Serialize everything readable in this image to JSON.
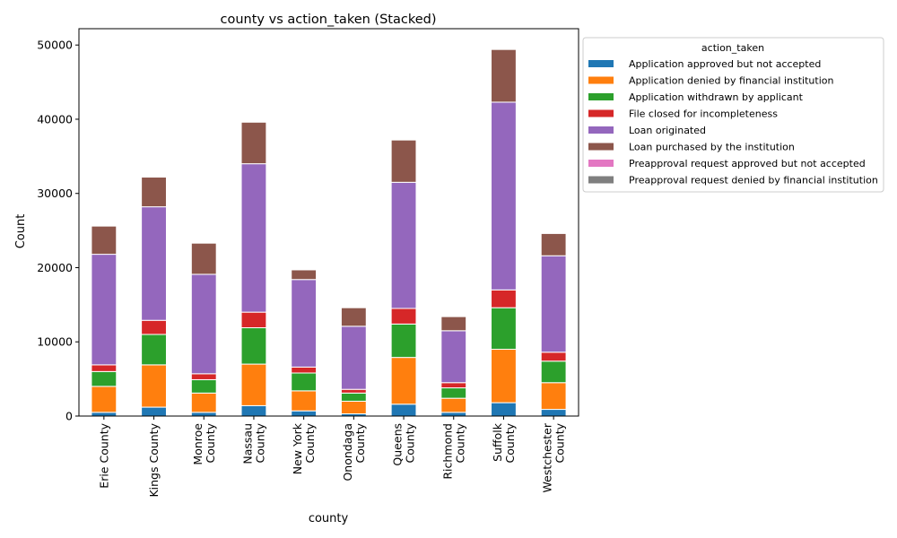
{
  "chart_data": {
    "type": "bar",
    "stacked": true,
    "title": "county vs action_taken (Stacked)",
    "xlabel": "county",
    "ylabel": "Count",
    "ylim": [
      0,
      52200
    ],
    "yticks": [
      0,
      10000,
      20000,
      30000,
      40000,
      50000
    ],
    "grid": false,
    "legend_title": "action_taken",
    "legend_position": "outside-top-right",
    "categories": [
      "Erie County",
      "Kings County",
      "Monroe County",
      "Nassau County",
      "New York County",
      "Onondaga County",
      "Queens County",
      "Richmond County",
      "Suffolk County",
      "Westchester County"
    ],
    "category_labels": [
      [
        "Erie County"
      ],
      [
        "Kings County"
      ],
      [
        "Monroe",
        "County"
      ],
      [
        "Nassau",
        "County"
      ],
      [
        "New York",
        "County"
      ],
      [
        "Onondaga",
        "County"
      ],
      [
        "Queens",
        "County"
      ],
      [
        "Richmond",
        "County"
      ],
      [
        "Suffolk",
        "County"
      ],
      [
        "Westchester",
        "County"
      ]
    ],
    "series": [
      {
        "name": "Application approved but not accepted",
        "color": "#1f77b4",
        "values": [
          500,
          1200,
          500,
          1400,
          700,
          300,
          1600,
          500,
          1800,
          900
        ]
      },
      {
        "name": "Application denied by financial institution",
        "color": "#ff7f0e",
        "values": [
          3500,
          5700,
          2600,
          5600,
          2700,
          1700,
          6300,
          1900,
          7200,
          3600
        ]
      },
      {
        "name": "Application withdrawn by applicant",
        "color": "#2ca02c",
        "values": [
          2000,
          4100,
          1800,
          4900,
          2400,
          1100,
          4500,
          1400,
          5600,
          2900
        ]
      },
      {
        "name": "File closed for incompleteness",
        "color": "#d62728",
        "values": [
          900,
          1900,
          800,
          2100,
          800,
          500,
          2100,
          700,
          2400,
          1200
        ]
      },
      {
        "name": "Loan originated",
        "color": "#9467bd",
        "values": [
          14900,
          15300,
          13400,
          20000,
          11800,
          8500,
          17000,
          7000,
          25300,
          13000
        ]
      },
      {
        "name": "Loan purchased by the institution",
        "color": "#8c564b",
        "values": [
          3800,
          4000,
          4200,
          5600,
          1300,
          2500,
          5700,
          1900,
          7100,
          3000
        ]
      },
      {
        "name": "Preapproval request approved but not accepted",
        "color": "#e377c2",
        "values": [
          0,
          0,
          0,
          0,
          0,
          0,
          0,
          0,
          0,
          0
        ]
      },
      {
        "name": "Preapproval request denied by financial institution",
        "color": "#7f7f7f",
        "values": [
          0,
          0,
          0,
          0,
          0,
          0,
          0,
          0,
          0,
          0
        ]
      }
    ]
  }
}
